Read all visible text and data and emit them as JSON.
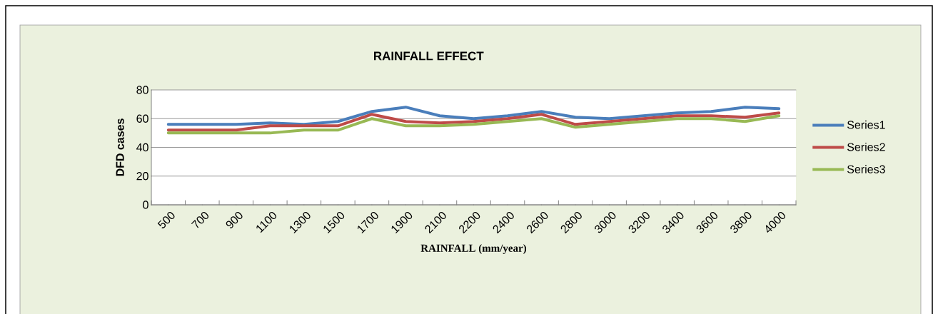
{
  "chart_data": {
    "type": "line",
    "title": "RAINFALL EFFECT",
    "xlabel": "RAINFALL (mm/year)",
    "ylabel": "DFD cases",
    "categories": [
      "500",
      "700",
      "900",
      "1100",
      "1300",
      "1500",
      "1700",
      "1900",
      "2100",
      "2200",
      "2400",
      "2600",
      "2800",
      "3000",
      "3200",
      "3400",
      "3600",
      "3800",
      "4000"
    ],
    "series": [
      {
        "name": "Series1",
        "color": "#4a7ebb",
        "values": [
          56,
          56,
          56,
          57,
          56,
          58,
          65,
          68,
          62,
          60,
          62,
          65,
          61,
          60,
          62,
          64,
          65,
          68,
          67
        ]
      },
      {
        "name": "Series2",
        "color": "#be4b48",
        "values": [
          52,
          52,
          52,
          55,
          55,
          55,
          63,
          58,
          57,
          58,
          60,
          63,
          56,
          58,
          60,
          62,
          62,
          61,
          64
        ]
      },
      {
        "name": "Series3",
        "color": "#98b954",
        "values": [
          50,
          50,
          50,
          50,
          52,
          52,
          60,
          55,
          55,
          56,
          58,
          60,
          54,
          56,
          58,
          60,
          60,
          58,
          62
        ]
      }
    ],
    "ylim": [
      0,
      80
    ],
    "yticks": [
      0,
      20,
      40,
      60,
      80
    ],
    "grid": "y",
    "legend": "right",
    "marker": "none",
    "line_style": "solid"
  }
}
